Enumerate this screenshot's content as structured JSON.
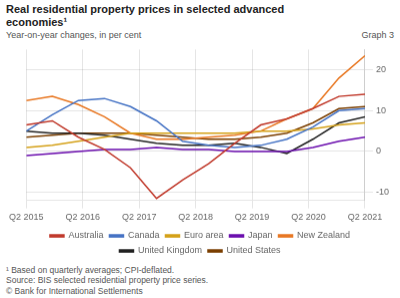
{
  "chart_data": {
    "type": "line",
    "title": [
      "Real residential property prices in selected advanced",
      "economies¹"
    ],
    "subtitle": "Year-on-year changes, in per cent",
    "annotations": [
      "Graph 3"
    ],
    "footnotes": [
      "¹  Based on quarterly averages; CPI-deflated.",
      "Source: BIS selected residential property price series.",
      "© Bank for International Settlements"
    ],
    "x": [
      0,
      0.46153846153846156,
      0.9230769230769231,
      1.3846153846153846,
      1.8461538461538463,
      2.3076923076923075,
      2.769230769230769,
      3.230769230769231,
      3.6923076923076925,
      4.153846153846154,
      4.615384615384615,
      5.076923076923077,
      5.538461538461538,
      6
    ],
    "xlim": [
      0,
      6
    ],
    "xticks": [
      {
        "value": 0,
        "label": "Q2 2015"
      },
      {
        "value": 1,
        "label": "Q2 2016"
      },
      {
        "value": 2,
        "label": "Q2 2017"
      },
      {
        "value": 3,
        "label": "Q2 2018"
      },
      {
        "value": 4,
        "label": "Q2 2019"
      },
      {
        "value": 5,
        "label": "Q2 2020"
      },
      {
        "value": 6,
        "label": "Q2 2021"
      }
    ],
    "ylim": [
      -12,
      25
    ],
    "yticks": [
      -10,
      0,
      10,
      20
    ],
    "grid": true,
    "legend": "bottom",
    "series": [
      {
        "name": "Australia",
        "color": "#c0392b",
        "values": [
          6.5,
          7.5,
          3.5,
          0.5,
          -4.0,
          -11.5,
          -7.0,
          -3.0,
          2.0,
          6.5,
          8.0,
          10.5,
          13.5,
          14.0
        ]
      },
      {
        "name": "Canada",
        "color": "#4472c4",
        "values": [
          5.0,
          9.0,
          12.5,
          13.0,
          11.0,
          7.5,
          2.5,
          1.5,
          1.0,
          1.5,
          3.0,
          6.0,
          10.0,
          10.5
        ]
      },
      {
        "name": "Euro area",
        "color": "#d4a017",
        "values": [
          1.0,
          1.5,
          2.5,
          3.5,
          4.5,
          4.5,
          4.5,
          4.5,
          4.5,
          5.0,
          5.0,
          5.5,
          6.5,
          7.0
        ]
      },
      {
        "name": "Japan",
        "color": "#6a0dad",
        "values": [
          -1.0,
          -0.5,
          0.0,
          0.5,
          0.5,
          1.0,
          0.5,
          0.5,
          0.0,
          0.0,
          0.0,
          1.0,
          2.5,
          3.5
        ]
      },
      {
        "name": "New Zealand",
        "color": "#e87722",
        "values": [
          12.5,
          13.5,
          11.5,
          8.5,
          4.5,
          3.0,
          3.0,
          3.5,
          4.0,
          5.0,
          8.0,
          10.5,
          18.0,
          23.5
        ]
      },
      {
        "name": "United Kingdom",
        "color": "#222222",
        "values": [
          5.0,
          4.5,
          4.5,
          4.0,
          3.0,
          2.0,
          1.5,
          1.5,
          2.0,
          1.0,
          -0.5,
          3.0,
          7.0,
          8.5
        ]
      },
      {
        "name": "United States",
        "color": "#7b3f00",
        "values": [
          3.5,
          4.0,
          4.5,
          4.5,
          4.5,
          4.0,
          3.5,
          3.0,
          3.0,
          3.5,
          4.5,
          7.0,
          10.5,
          11.0
        ]
      }
    ]
  }
}
